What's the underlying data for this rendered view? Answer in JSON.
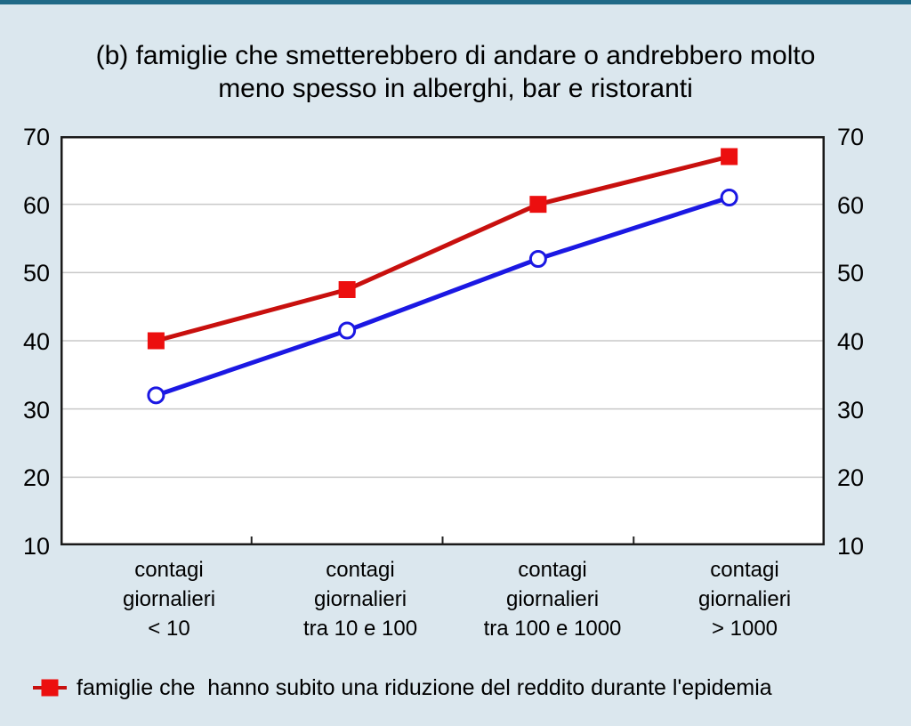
{
  "page": {
    "background_color": "#dbe7ee",
    "top_border_color": "#206a87"
  },
  "title": "(b) famiglie che smetterebbero di andare o andrebbero molto\nmeno spesso in alberghi, bar e ristoranti",
  "chart_data": {
    "type": "line",
    "title": "(b) famiglie che smetterebbero di andare o andrebbero molto meno spesso in alberghi, bar e ristoranti",
    "categories": [
      "contagi\ngiornalieri\n< 10",
      "contagi\ngiornalieri\ntra 10 e 100",
      "contagi\ngiornalieri\ntra 100 e 1000",
      "contagi\ngiornalieri\n> 1000"
    ],
    "series": [
      {
        "name": "famiglie che  hanno subito una riduzione del reddito durante l'epidemia",
        "values": [
          40,
          47.5,
          60,
          67
        ],
        "color": "#c8100e",
        "marker": "square",
        "marker_color": "#ec0f0f"
      },
      {
        "name": "",
        "values": [
          32,
          41.5,
          52,
          61
        ],
        "color": "#1b18e3",
        "marker": "circle-open",
        "marker_color": "#1b18e3"
      }
    ],
    "ylim": [
      10,
      70
    ],
    "yticks": [
      70,
      60,
      50,
      40,
      30,
      20,
      10
    ],
    "gridlines": [
      20,
      30,
      40,
      50,
      60
    ],
    "grid_color": "#c9c9c9",
    "plot_border_color": "#1a1a1a",
    "plot_background": "#ffffff",
    "legend_position": "bottom-left"
  },
  "legend": {
    "label": "famiglie che  hanno subito una riduzione del reddito durante l'epidemia"
  }
}
